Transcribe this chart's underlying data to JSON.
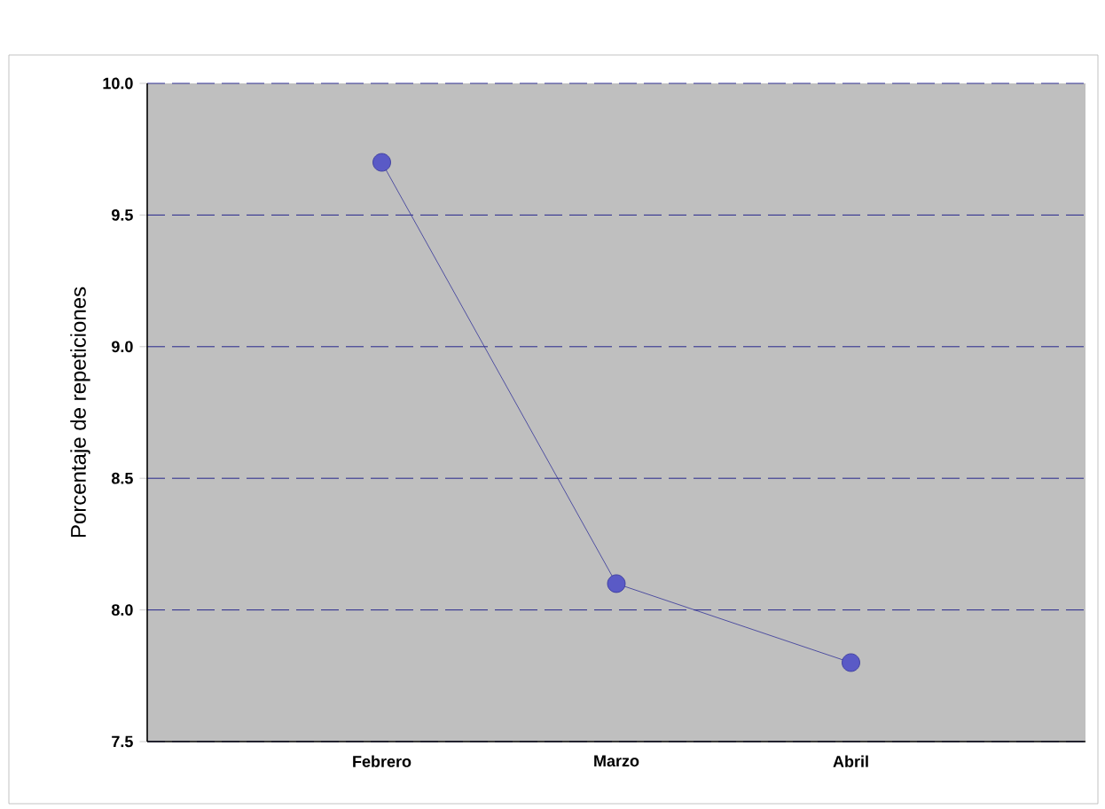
{
  "chart_data": {
    "type": "line",
    "ylabel": "Porcentaje de repeticiones",
    "categories": [
      "Febrero",
      "Marzo",
      "Abril"
    ],
    "series": [
      {
        "color": "#333399",
        "values": [
          9.7,
          8.1,
          7.8
        ]
      }
    ],
    "ylim": [
      7.5,
      10.0
    ],
    "yticks": [
      {
        "value": 7.5,
        "label": "7.5"
      },
      {
        "value": 8.0,
        "label": "8.0"
      },
      {
        "value": 8.5,
        "label": "8.5"
      },
      {
        "value": 9.0,
        "label": "9.0"
      },
      {
        "value": 9.5,
        "label": "9.5"
      },
      {
        "value": 10.0,
        "label": "10.0"
      }
    ],
    "grid": "y",
    "marker": "circle",
    "line_style": "solid"
  }
}
